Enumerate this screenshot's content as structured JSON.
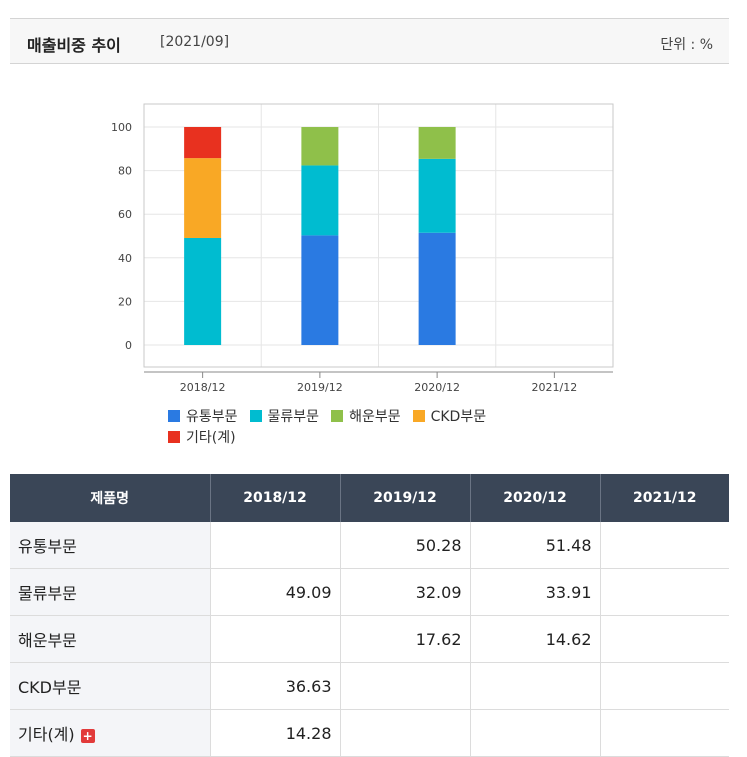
{
  "header": {
    "title": "매출비중 추이",
    "period": "[2021/09]",
    "unit": "단위 : %"
  },
  "chart_data": {
    "type": "bar",
    "stacked": true,
    "categories": [
      "2018/12",
      "2019/12",
      "2020/12",
      "2021/12"
    ],
    "ylim": [
      0,
      100
    ],
    "yticks": [
      0,
      20,
      40,
      60,
      80,
      100
    ],
    "grid": true,
    "legend_position": "bottom",
    "series": [
      {
        "name": "유통부문",
        "color": "#2a7ae2",
        "values": [
          null,
          50.28,
          51.48,
          null
        ]
      },
      {
        "name": "물류부문",
        "color": "#00bcd0",
        "values": [
          49.09,
          32.09,
          33.91,
          null
        ]
      },
      {
        "name": "해운부문",
        "color": "#8fc04a",
        "values": [
          null,
          17.62,
          14.62,
          null
        ]
      },
      {
        "name": "CKD부문",
        "color": "#f9a825",
        "values": [
          36.63,
          null,
          null,
          null
        ]
      },
      {
        "name": "기타(계)",
        "color": "#e8311f",
        "values": [
          14.28,
          null,
          null,
          null
        ]
      }
    ]
  },
  "table": {
    "header_label": "제품명",
    "columns": [
      "2018/12",
      "2019/12",
      "2020/12",
      "2021/12"
    ],
    "rows": [
      {
        "name": "유통부문",
        "values": [
          "",
          "50.28",
          "51.48",
          ""
        ]
      },
      {
        "name": "물류부문",
        "values": [
          "49.09",
          "32.09",
          "33.91",
          ""
        ]
      },
      {
        "name": "해운부문",
        "values": [
          "",
          "17.62",
          "14.62",
          ""
        ]
      },
      {
        "name": "CKD부문",
        "values": [
          "36.63",
          "",
          "",
          ""
        ]
      },
      {
        "name": "기타(계)",
        "values": [
          "14.28",
          "",
          "",
          ""
        ],
        "expand_icon": "plus-icon"
      }
    ]
  }
}
